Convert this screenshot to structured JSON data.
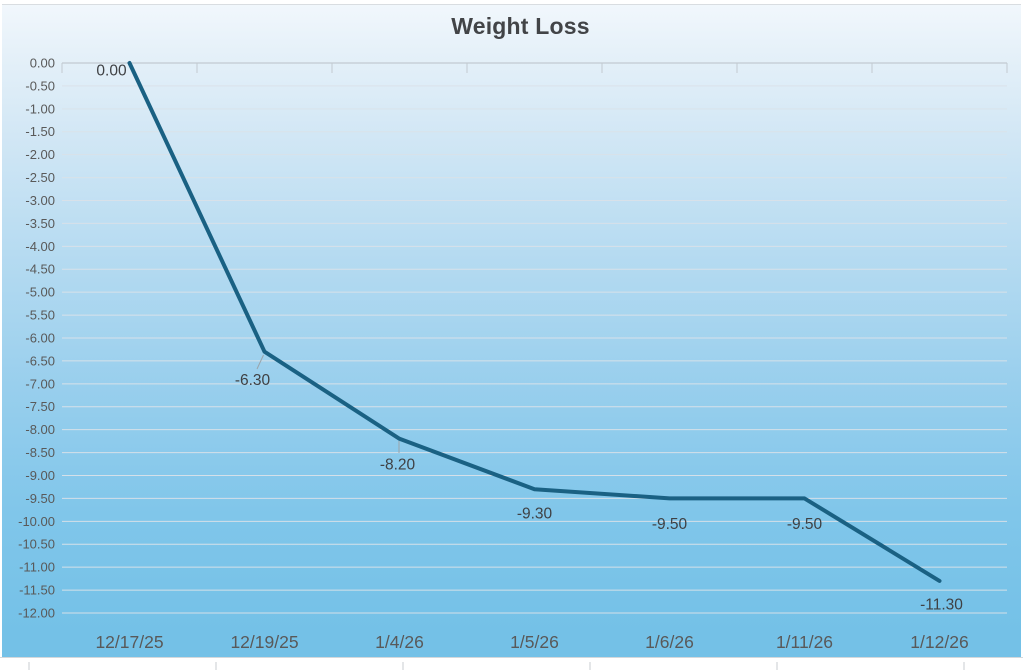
{
  "title": "Weight Loss",
  "chart_data": {
    "type": "line",
    "title": "Weight Loss",
    "categories": [
      "12/17/25",
      "12/19/25",
      "1/4/26",
      "1/5/26",
      "1/6/26",
      "1/11/26",
      "1/12/26"
    ],
    "series": [
      {
        "name": "Weight Loss",
        "values": [
          0.0,
          -6.3,
          -8.2,
          -9.3,
          -9.5,
          -9.5,
          -11.3
        ]
      }
    ],
    "data_labels": [
      "0.00",
      "-6.30",
      "-8.20",
      "-9.30",
      "-9.50",
      "-9.50",
      "-11.30"
    ],
    "xlabel": "",
    "ylabel": "",
    "y_axis": {
      "min": -12.0,
      "max": 0.0,
      "step": 0.5,
      "tick_labels": [
        "0.00",
        "-0.50",
        "-1.00",
        "-1.50",
        "-2.00",
        "-2.50",
        "-3.00",
        "-3.50",
        "-4.00",
        "-4.50",
        "-5.00",
        "-5.50",
        "-6.00",
        "-6.50",
        "-7.00",
        "-7.50",
        "-8.00",
        "-8.50",
        "-9.00",
        "-9.50",
        "-10.00",
        "-10.50",
        "-11.00",
        "-11.50",
        "-12.00"
      ]
    },
    "grid": true,
    "legend": false,
    "colors": {
      "line": "#1a6183",
      "gridline": "#dae2e9",
      "axis_line": "#c2cad1",
      "leader_line": "#9aa4ab",
      "title_text": "#424447",
      "axis_text": "#595959",
      "data_label_text": "#3f4144",
      "background_top": "#f1f7fc",
      "background_bottom": "#74c1e7"
    }
  }
}
